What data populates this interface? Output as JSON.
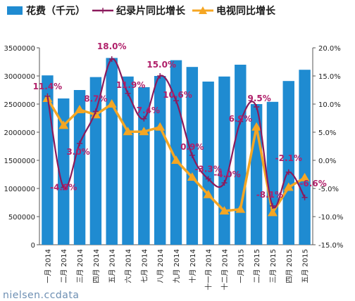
{
  "chart_data": {
    "type": "bar+line",
    "categories": [
      "一月 2014",
      "二月 2014",
      "三月 2014",
      "四月 2014",
      "五月 2014",
      "六月 2014",
      "七月 2014",
      "八月 2014",
      "九月 2014",
      "十月 2014",
      "十一月 2014",
      "十二月 2014",
      "一月 2015",
      "二月 2015",
      "三月 2015",
      "四月 2015",
      "五月 2015"
    ],
    "bars": {
      "name": "花费（千元）",
      "color": "#1f8bd1",
      "values": [
        3010000,
        2600000,
        2750000,
        2980000,
        3320000,
        2990000,
        2800000,
        3000000,
        3280000,
        3160000,
        2900000,
        2990000,
        3200000,
        2500000,
        2540000,
        2910000,
        3110000
      ]
    },
    "series": [
      {
        "name": "纪录片同比增长",
        "color": "#8b1a5c",
        "values": [
          11.4,
          -4.8,
          3.0,
          8.7,
          18.0,
          11.9,
          7.4,
          15.0,
          10.6,
          0.9,
          -3.3,
          -4.0,
          6.9,
          9.5,
          -8.1,
          -2.1,
          -6.6
        ],
        "labels": [
          "11.4%",
          "-4.8%",
          "3.0%",
          "8.7%",
          "18.0%",
          "11.9%",
          "7.4%",
          "15.0%",
          "10.6%",
          "0.9%",
          "-3.3%",
          "-4.0%",
          "6.9%",
          "9.5%",
          "-8.1%",
          "-2.1%",
          "-6.6%"
        ]
      },
      {
        "name": "电视同比增长",
        "color": "#f5a623",
        "values": [
          11.0,
          6.2,
          9.0,
          8.1,
          10.0,
          5.1,
          5.1,
          5.9,
          0.0,
          -3.0,
          -6.1,
          -9.0,
          -8.7,
          5.9,
          -9.3,
          -4.8,
          -3.1
        ]
      }
    ],
    "y_left": {
      "min": 0,
      "max": 3500000,
      "ticks": [
        "0",
        "500000",
        "1000000",
        "1500000",
        "2000000",
        "2500000",
        "3000000",
        "3500000"
      ]
    },
    "y_right": {
      "min": -15,
      "max": 20,
      "ticks": [
        "-15.0%",
        "-10.0%",
        "-5.0%",
        "0.0%",
        "5.0%",
        "10.0%",
        "15.0%",
        "20.0%"
      ]
    },
    "grid": false,
    "legend": "top"
  },
  "watermark": "nielsen.ccdata"
}
